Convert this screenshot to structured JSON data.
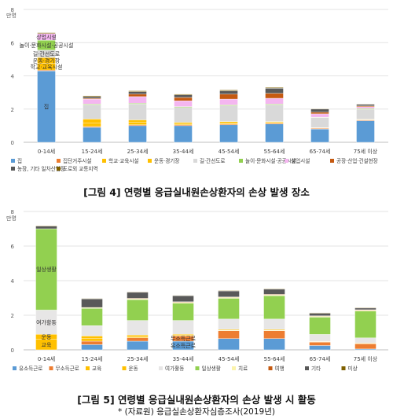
{
  "chart_data": [
    {
      "type": "bar",
      "stacked": true,
      "ylabel": "만명",
      "ylim": [
        0,
        8
      ],
      "yticks": [
        "0",
        "2",
        "4",
        "6",
        "8"
      ],
      "grid": true,
      "legend_position": "bottom",
      "categories": [
        "0-14세",
        "15-24세",
        "25-34세",
        "35-44세",
        "45-54세",
        "55-64세",
        "65-74세",
        "75세 이상"
      ],
      "series": [
        {
          "name": "집",
          "color": "#5b9bd5",
          "values": [
            4.3,
            0.9,
            1.0,
            1.0,
            1.05,
            1.1,
            0.8,
            1.3
          ]
        },
        {
          "name": "집단거주시설",
          "color": "#ed7d31",
          "values": [
            0.05,
            0.05,
            0.05,
            0.05,
            0.05,
            0.05,
            0.05,
            0.05
          ]
        },
        {
          "name": "학교·교육시설",
          "color": "#ffc000",
          "values": [
            0.4,
            0.2,
            0.15,
            0.05,
            0.05,
            0.05,
            0.02,
            0.02
          ]
        },
        {
          "name": "운동·경기장",
          "color": "#ffc000",
          "values": [
            0.35,
            0.25,
            0.15,
            0.1,
            0.1,
            0.05,
            0.02,
            0.02
          ]
        },
        {
          "name": "길·간선도로",
          "color": "#d9d9d9",
          "values": [
            0.45,
            0.85,
            0.95,
            0.9,
            0.95,
            1.0,
            0.6,
            0.6
          ]
        },
        {
          "name": "놀이·문화시설·공공시설",
          "color": "#92d050",
          "values": [
            0.6,
            0.05,
            0.05,
            0.05,
            0.05,
            0.05,
            0.02,
            0.05
          ]
        },
        {
          "name": "상업시설",
          "color": "#f4b6f0",
          "values": [
            0.4,
            0.3,
            0.4,
            0.35,
            0.35,
            0.35,
            0.2,
            0.1
          ]
        },
        {
          "name": "공장·산업·건설현장",
          "color": "#c55a11",
          "values": [
            0.0,
            0.05,
            0.15,
            0.2,
            0.3,
            0.3,
            0.1,
            0.05
          ]
        },
        {
          "name": "농장, 기타 일차산업장",
          "color": "#595959",
          "values": [
            0.0,
            0.1,
            0.15,
            0.15,
            0.2,
            0.3,
            0.2,
            0.1
          ]
        },
        {
          "name": "도로외 교통지역",
          "color": "#7f6000",
          "values": [
            0.05,
            0.05,
            0.05,
            0.05,
            0.05,
            0.05,
            0.02,
            0.02
          ]
        }
      ],
      "bar_labels": {
        "0-14세": [
          "집",
          "학교·교육시설",
          "운동·경기장",
          "길·간선도로",
          "놀이·문화시설·공공시설",
          "상업시설"
        ]
      },
      "caption": "[그림 4] 연령별 응급실내원손상환자의 손상 발생 장소"
    },
    {
      "type": "bar",
      "stacked": true,
      "ylabel": "만명",
      "ylim": [
        0,
        8
      ],
      "yticks": [
        "0",
        "2",
        "4",
        "6",
        "8"
      ],
      "grid": true,
      "legend_position": "bottom",
      "categories": [
        "0-14세",
        "15-24세",
        "25-34세",
        "35-44세",
        "45-54세",
        "55-64세",
        "65-74세",
        "75세 이상"
      ],
      "series": [
        {
          "name": "유소득근로",
          "color": "#5b9bd5",
          "values": [
            0.0,
            0.3,
            0.5,
            0.5,
            0.65,
            0.65,
            0.25,
            0.05
          ]
        },
        {
          "name": "무소득근로",
          "color": "#ed7d31",
          "values": [
            0.0,
            0.2,
            0.2,
            0.3,
            0.45,
            0.45,
            0.2,
            0.3
          ]
        },
        {
          "name": "교육",
          "color": "#ffc000",
          "values": [
            0.6,
            0.15,
            0.05,
            0.05,
            0.03,
            0.03,
            0.02,
            0.02
          ]
        },
        {
          "name": "운동",
          "color": "#ffc000",
          "values": [
            0.3,
            0.15,
            0.1,
            0.05,
            0.05,
            0.05,
            0.02,
            0.02
          ]
        },
        {
          "name": "여가활동",
          "color": "#e7e6e6",
          "values": [
            1.4,
            0.6,
            0.85,
            0.8,
            0.6,
            0.6,
            0.4,
            0.3
          ]
        },
        {
          "name": "일상생활",
          "color": "#92d050",
          "values": [
            4.7,
            1.0,
            1.2,
            1.0,
            1.2,
            1.35,
            1.0,
            1.55
          ]
        },
        {
          "name": "치료",
          "color": "#fbf3ab",
          "values": [
            0.0,
            0.05,
            0.05,
            0.05,
            0.05,
            0.05,
            0.05,
            0.05
          ]
        },
        {
          "name": "여행",
          "color": "#c55a11",
          "values": [
            0.0,
            0.0,
            0.03,
            0.03,
            0.03,
            0.03,
            0.03,
            0.03
          ]
        },
        {
          "name": "기타",
          "color": "#595959",
          "values": [
            0.15,
            0.5,
            0.35,
            0.35,
            0.35,
            0.3,
            0.15,
            0.1
          ]
        },
        {
          "name": "미상",
          "color": "#7f6000",
          "values": [
            0.03,
            0.02,
            0.02,
            0.02,
            0.02,
            0.02,
            0.02,
            0.02
          ]
        }
      ],
      "bar_labels": {
        "0-14세": [
          "교육",
          "운동",
          "여가활동",
          "일상생활"
        ],
        "35-44세": [
          "유소득근로",
          "무소득근로"
        ]
      },
      "caption": "[그림 5] 연령별 응급실내원손상환자의 손상 발생 시 활동"
    }
  ],
  "source_note": "* (자료원) 응급실손상환자심층조사(2019년)"
}
